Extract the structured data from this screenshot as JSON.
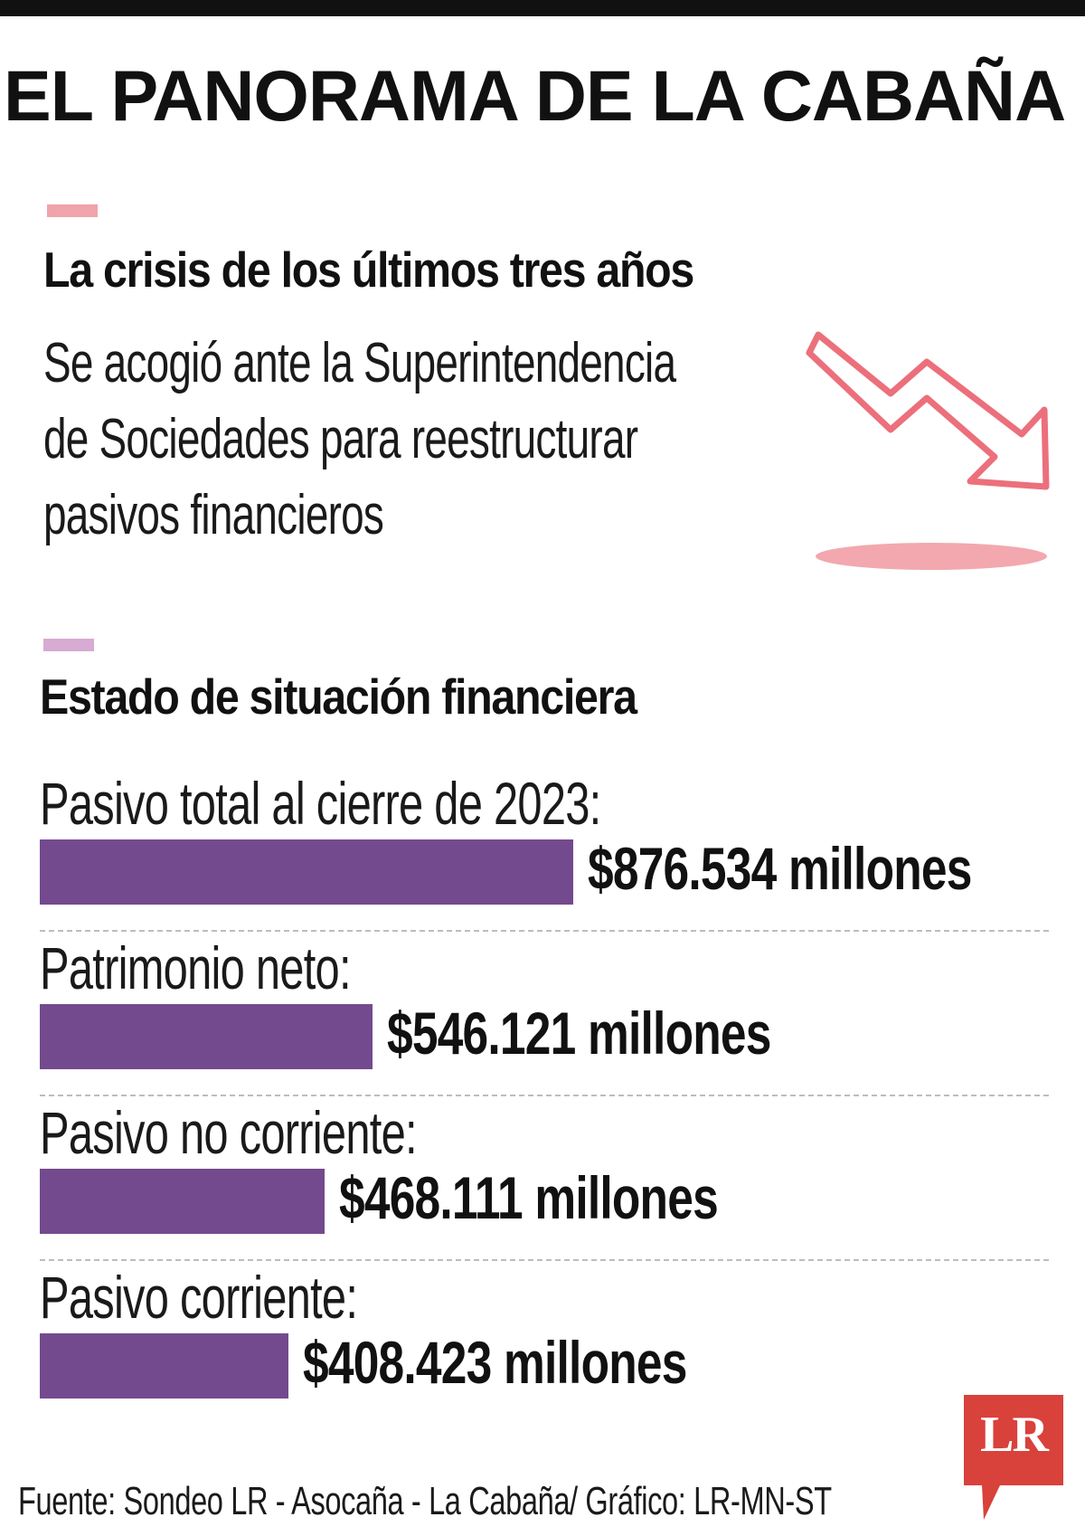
{
  "header": {
    "title": "EL PANORAMA DE LA CABAÑA"
  },
  "crisis": {
    "title": "La crisis de los últimos tres años",
    "description_lines": [
      "Se acogió ante la Superintendencia",
      "de Sociedades para reestructurar",
      "pasivos financieros"
    ],
    "icon": "downward-trend-arrow-icon",
    "color": "#f0a3aa"
  },
  "financial": {
    "title": "Estado de situación financiera",
    "color": "#d7abd3"
  },
  "chart_data": {
    "type": "bar",
    "orientation": "horizontal",
    "categories": [
      "Pasivo total al cierre de 2023:",
      "Patrimonio neto:",
      "Pasivo no corriente:",
      "Pasivo corriente:"
    ],
    "values": [
      876534,
      546121,
      468111,
      408423
    ],
    "value_labels": [
      "$876.534 millones",
      "$546.121 millones",
      "$468.111 millones",
      "$408.423 millones"
    ],
    "unit": "millones",
    "bar_color": "#744a8e"
  },
  "footer": {
    "source": "Fuente: Sondeo LR - Asocaña - La Cabaña/ Gráfico: LR-MN-ST"
  },
  "logo": {
    "text": "LR",
    "color": "#d9413b"
  }
}
